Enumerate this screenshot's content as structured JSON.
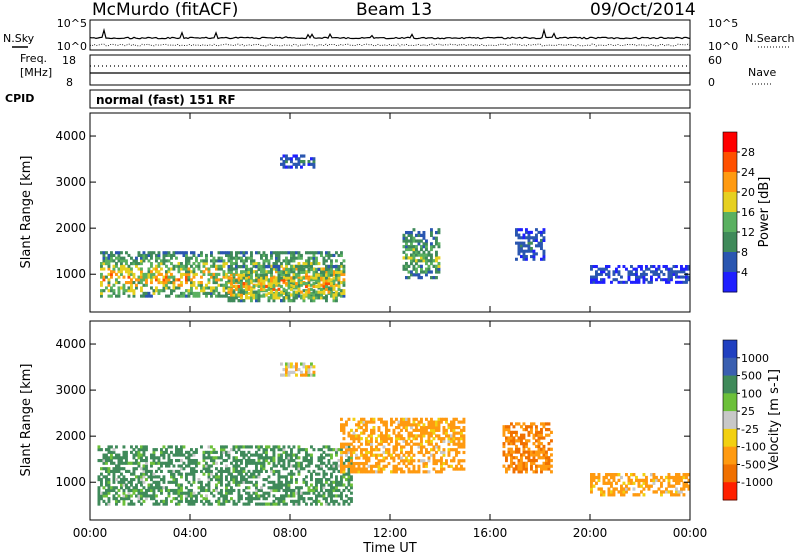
{
  "header": {
    "station": "McMurdo (fitACF)",
    "beam": "Beam 13",
    "date": "09/Oct/2014"
  },
  "strip": {
    "nsky_label": "N.Sky",
    "nsearch_label": "N.Search",
    "noise_ticks_left": [
      "10^5",
      "10^0"
    ],
    "noise_ticks_right": [
      "10^5",
      "10^0"
    ],
    "freq_label": "Freq.",
    "freq_unit": "[MHz]",
    "freq_ticks": [
      "18",
      "8"
    ],
    "nave_label": "Nave",
    "nave_ticks": [
      "60",
      "0"
    ],
    "cpid_label": "CPID",
    "cpid_text": "normal (fast) 151 RF"
  },
  "colors": {
    "power_scale": [
      "#1f1fff",
      "#2a56b0",
      "#3f8a5a",
      "#5ab060",
      "#e6d020",
      "#ff9a10",
      "#ff5000",
      "#ff0000"
    ],
    "velocity_scale": [
      "#2040c0",
      "#3a5fb0",
      "#3f8a5a",
      "#6cc03a",
      "#c8c8c8",
      "#f2d010",
      "#ff9a10",
      "#f07000",
      "#ff2000"
    ]
  },
  "chart_data": [
    {
      "type": "heatmap",
      "panel": "power",
      "ylabel": "Slant Range [km]",
      "xlabel": "",
      "x_ticks": [
        "00:00",
        "04:00",
        "08:00",
        "12:00",
        "16:00",
        "20:00",
        "00:00"
      ],
      "xlim": [
        0,
        24
      ],
      "y_ticks": [
        "1000",
        "2000",
        "3000",
        "4000"
      ],
      "ylim": [
        180,
        4500
      ],
      "colorbar": {
        "label": "Power [dB]",
        "ticks": [
          "4",
          "8",
          "12",
          "16",
          "20",
          "24",
          "28"
        ],
        "range": [
          0,
          32
        ]
      },
      "features": [
        {
          "t0": 0.4,
          "t1": 10.2,
          "r0": 500,
          "r1": 1500,
          "peak_db": 26
        },
        {
          "t0": 5.5,
          "t1": 10.0,
          "r0": 400,
          "r1": 1200,
          "peak_db": 28
        },
        {
          "t0": 12.5,
          "t1": 14.0,
          "r0": 900,
          "r1": 2000,
          "peak_db": 20
        },
        {
          "t0": 17.0,
          "t1": 18.2,
          "r0": 1300,
          "r1": 2000,
          "peak_db": 10
        },
        {
          "t0": 20.0,
          "t1": 24.0,
          "r0": 800,
          "r1": 1200,
          "peak_db": 8
        },
        {
          "t0": 7.6,
          "t1": 9.0,
          "r0": 3300,
          "r1": 3600,
          "peak_db": 10
        }
      ]
    },
    {
      "type": "heatmap",
      "panel": "velocity",
      "ylabel": "Slant Range [km]",
      "xlabel": "Time UT",
      "x_ticks": [
        "00:00",
        "04:00",
        "08:00",
        "12:00",
        "16:00",
        "20:00",
        "00:00"
      ],
      "xlim": [
        0,
        24
      ],
      "y_ticks": [
        "1000",
        "2000",
        "3000",
        "4000"
      ],
      "ylim": [
        180,
        4500
      ],
      "colorbar": {
        "label": "Velocity [m s-1]",
        "ticks": [
          "1000",
          "500",
          "100",
          "25",
          "-25",
          "-100",
          "-500",
          "-1000"
        ]
      },
      "features": [
        {
          "t0": 0.3,
          "t1": 10.5,
          "r0": 500,
          "r1": 1800,
          "velocity": 100
        },
        {
          "t0": 10.0,
          "t1": 15.0,
          "r0": 1200,
          "r1": 2400,
          "velocity": -100
        },
        {
          "t0": 16.5,
          "t1": 18.5,
          "r0": 1200,
          "r1": 2300,
          "velocity": -300
        },
        {
          "t0": 20.0,
          "t1": 24.0,
          "r0": 700,
          "r1": 1200,
          "velocity": -100
        },
        {
          "t0": 7.6,
          "t1": 9.0,
          "r0": 3300,
          "r1": 3600,
          "velocity": -25
        }
      ]
    }
  ]
}
